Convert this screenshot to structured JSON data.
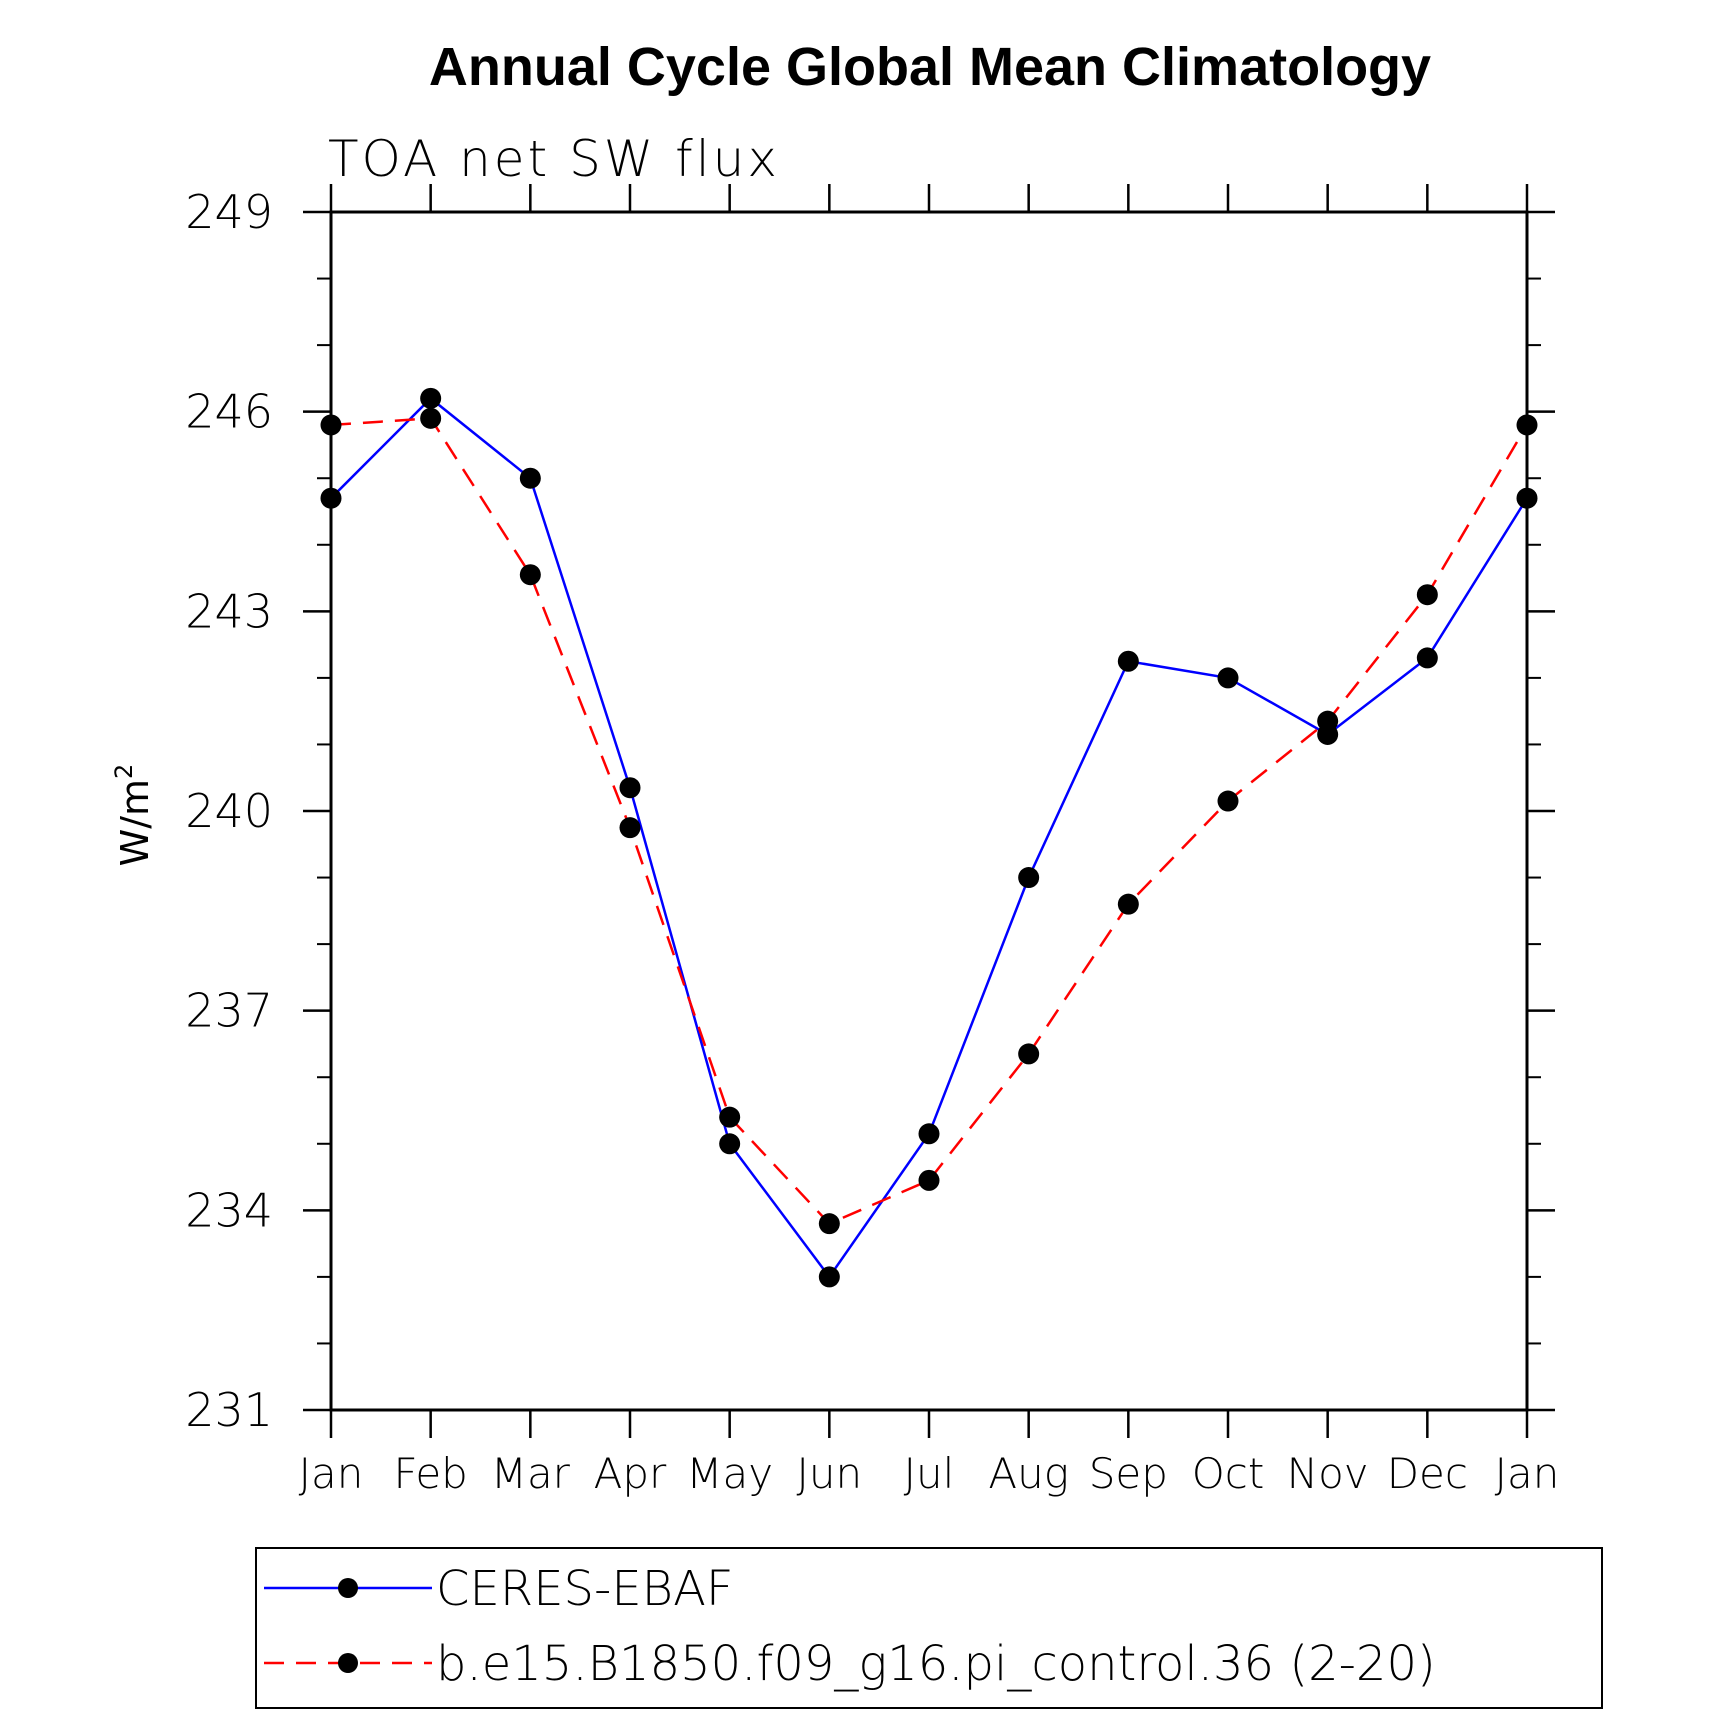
{
  "chart_data": {
    "type": "line",
    "title": "Annual Cycle Global Mean Climatology",
    "subtitle": "TOA net SW flux",
    "xlabel": "",
    "ylabel": "W/m",
    "ylabel_superscript": "2",
    "categories": [
      "Jan",
      "Feb",
      "Mar",
      "Apr",
      "May",
      "Jun",
      "Jul",
      "Aug",
      "Sep",
      "Oct",
      "Nov",
      "Dec",
      "Jan"
    ],
    "ylim": [
      231,
      249
    ],
    "yticks": [
      231,
      234,
      237,
      240,
      243,
      246,
      249
    ],
    "ytick_labels": [
      "231",
      "234",
      "237",
      "240",
      "243",
      "246",
      "249"
    ],
    "grid": false,
    "legend_position": "bottom",
    "series": [
      {
        "name": "CERES-EBAF",
        "color": "#0000ff",
        "style": "solid",
        "values": [
          244.7,
          246.2,
          245.0,
          240.35,
          235.0,
          233.0,
          235.15,
          239.0,
          242.25,
          242.0,
          241.15,
          242.3,
          244.7
        ]
      },
      {
        "name": "b.e15.B1850.f09_g16.pi_control.36 (2-20)",
        "color": "#ff0000",
        "style": "dashed",
        "values": [
          245.8,
          245.9,
          243.55,
          239.75,
          235.4,
          233.8,
          234.45,
          236.35,
          238.6,
          240.15,
          241.35,
          243.25,
          245.8
        ]
      }
    ]
  }
}
